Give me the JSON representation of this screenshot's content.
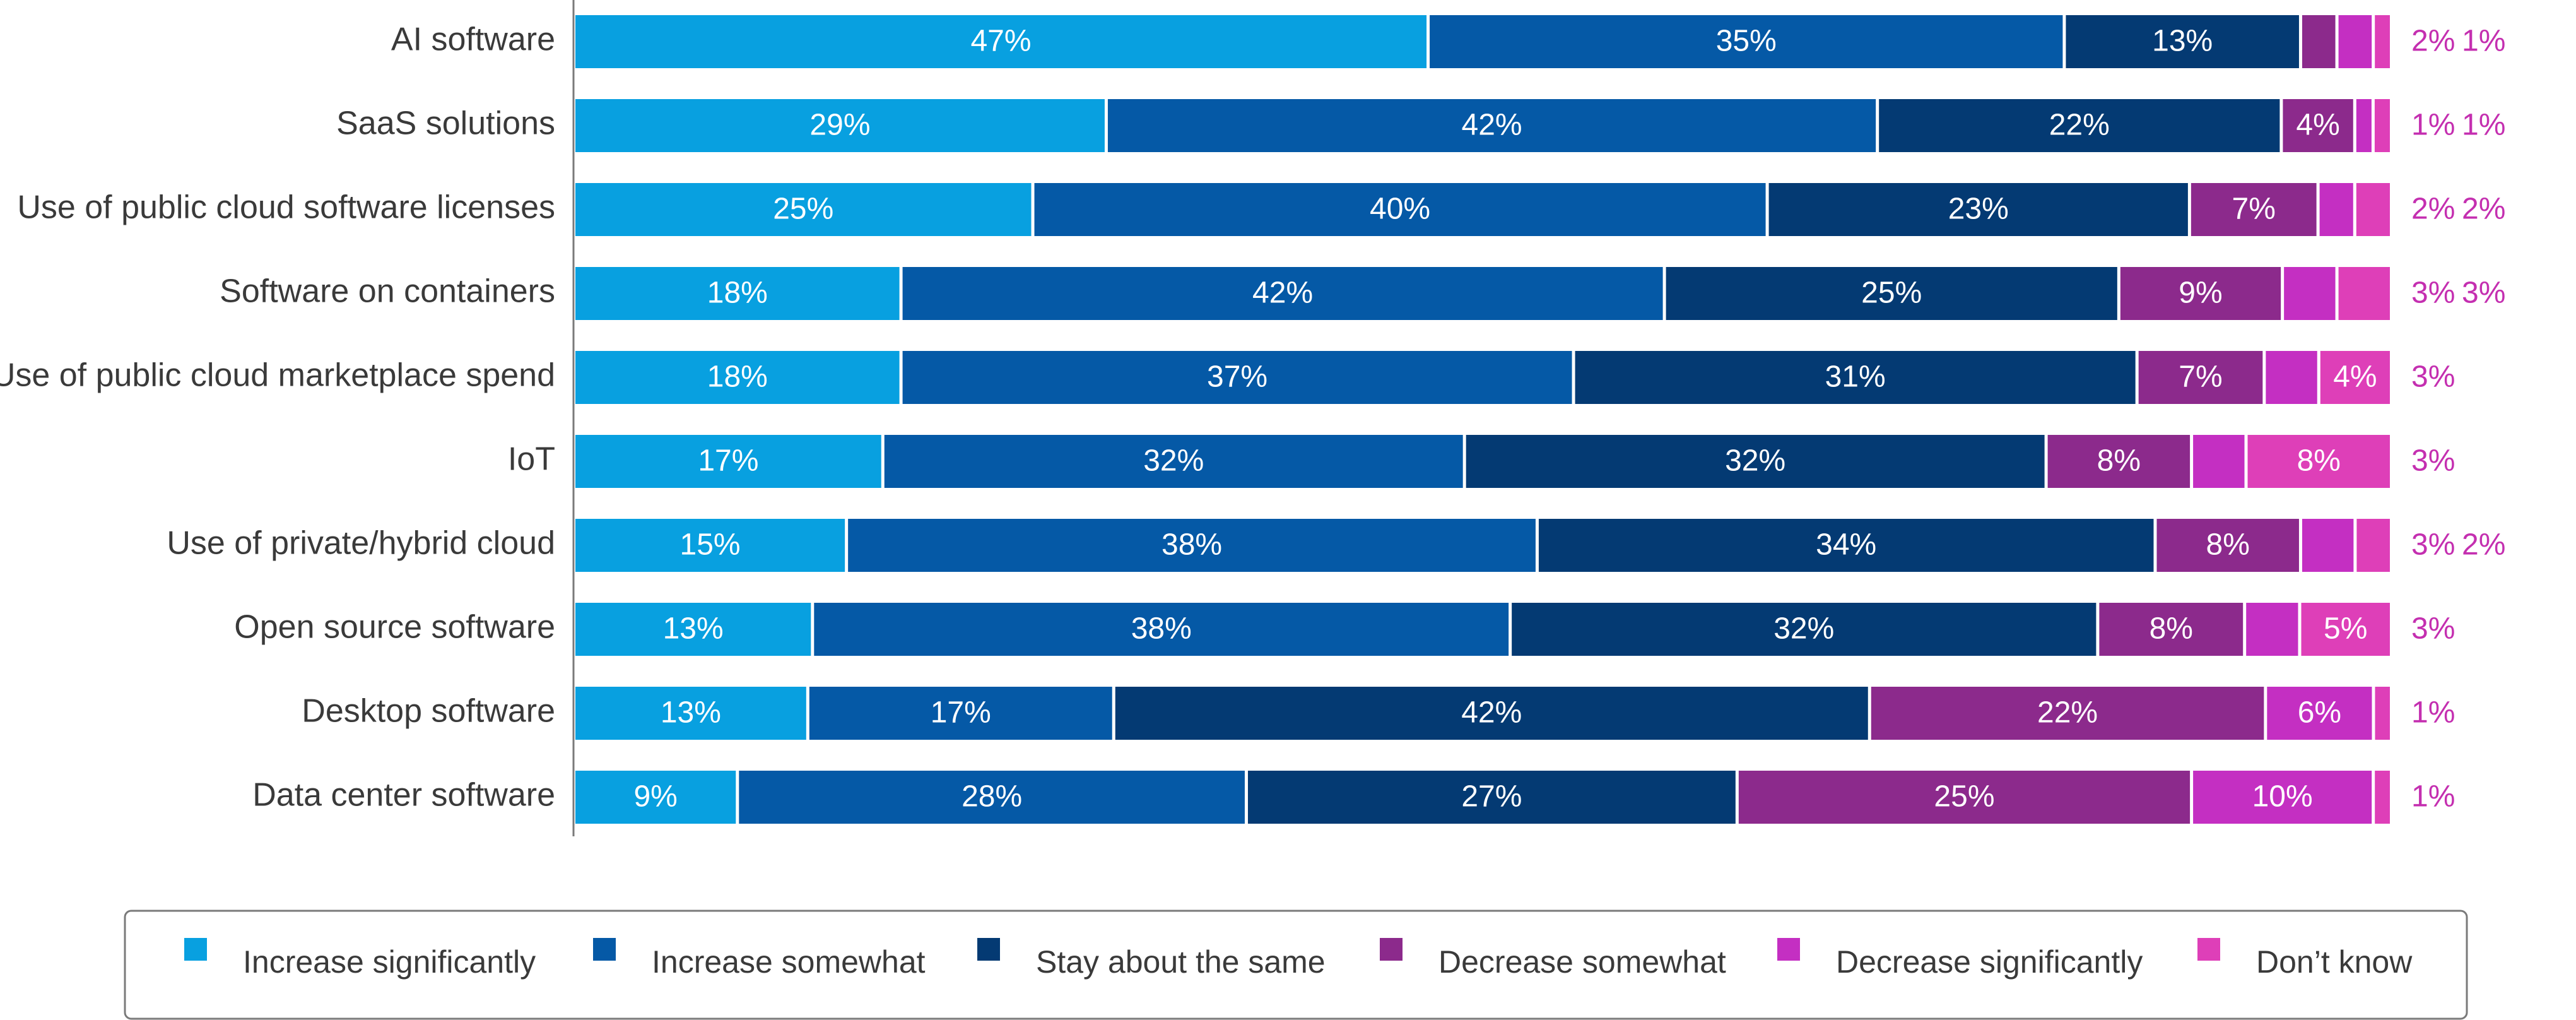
{
  "chart_data": {
    "type": "bar",
    "orientation": "horizontal",
    "stacked": true,
    "percent_stacked": true,
    "categories": [
      "AI software",
      "SaaS solutions",
      "Use of public cloud software licenses",
      "Software on containers",
      "Use of public cloud marketplace spend",
      "IoT",
      "Use of private/hybrid cloud",
      "Open source software",
      "Desktop software",
      "Data center software"
    ],
    "series": [
      {
        "name": "Increase significantly",
        "color": "#08a0e0",
        "values": [
          47,
          29,
          25,
          18,
          18,
          17,
          15,
          13,
          13,
          9
        ]
      },
      {
        "name": "Increase somewhat",
        "color": "#0559a6",
        "values": [
          35,
          42,
          40,
          42,
          37,
          32,
          38,
          38,
          17,
          28
        ]
      },
      {
        "name": "Stay about the same",
        "color": "#043a73",
        "values": [
          13,
          22,
          23,
          25,
          31,
          32,
          34,
          32,
          42,
          27
        ]
      },
      {
        "name": "Decrease somewhat",
        "color": "#8c2a8c",
        "values": [
          2,
          4,
          7,
          9,
          7,
          8,
          8,
          8,
          22,
          25
        ]
      },
      {
        "name": "Decrease significantly",
        "color": "#c42fc2",
        "values": [
          2,
          1,
          2,
          3,
          3,
          3,
          3,
          3,
          6,
          10
        ]
      },
      {
        "name": "Don’t know",
        "color": "#de3fb8",
        "values": [
          1,
          1,
          2,
          3,
          4,
          8,
          2,
          5,
          1,
          1
        ]
      }
    ],
    "legend_position": "bottom",
    "grid": false
  }
}
